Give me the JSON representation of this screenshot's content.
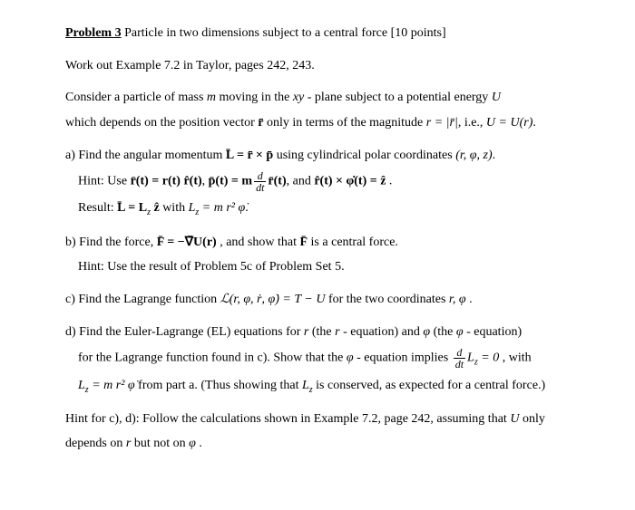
{
  "title": {
    "label": "Problem 3",
    "rest": "  Particle in two dimensions subject to a central force  [10 points]"
  },
  "intro1": "Work out Example 7.2 in Taylor, pages 242, 243.",
  "intro2a": "Consider a particle of mass ",
  "intro2b": " moving in the ",
  "intro2c": " - plane subject to a potential energy ",
  "intro3a": "which depends on the position vector ",
  "intro3b": " only in terms of the magnitude ",
  "intro3c": ", i.e., ",
  "intro3d": ".",
  "a": {
    "lead": "a) Find the angular momentum ",
    "mid": " using cylindrical polar coordinates ",
    "tail": ".",
    "hint_lead": "Hint: Use ",
    "hint_mid1": ", ",
    "hint_mid2": ", and ",
    "hint_tail": " .",
    "result_lead": "Result: ",
    "result_mid": " with ",
    "result_tail": "."
  },
  "b": {
    "lead": "b) Find the force, ",
    "mid": " , and show that ",
    "tail": " is a central force.",
    "hint": "Hint: Use the result of Problem 5c of Problem Set 5."
  },
  "c": {
    "lead": "c) Find the Lagrange function ",
    "tail": " for the two coordinates ",
    "end": " ."
  },
  "d": {
    "line1a": "d) Find the Euler-Lagrange (EL) equations for ",
    "line1b": " (the ",
    "line1c": " - equation) and ",
    "line1d": " (the ",
    "line1e": " - equation)",
    "line2a": "for the Lagrange function found in c). Show that the ",
    "line2b": " - equation implies ",
    "line2c": " , with",
    "line3a": " from part a. (Thus showing that ",
    "line3b": " is conserved, as expected for a central force.)"
  },
  "hint_cd1": "Hint for c), d): Follow the calculations shown in Example 7.2, page 242, assuming that ",
  "hint_cd2": " only",
  "hint_cd3": "depends on ",
  "hint_cd4": " but not on ",
  "hint_cd5": " .",
  "sym": {
    "m": "m",
    "xy": "xy",
    "U": "U",
    "rvec": "r̄",
    "r_eq": "r = |r̄|",
    "U_eq": "U = U(r)",
    "L_eq": "L̄ = r̄ × p̄",
    "coords": "(r, φ, z)",
    "rt": "r̄(t) = r(t) r̂(t)",
    "pt_a": "p̄(t) = m",
    "pt_b": "r̄(t)",
    "rhat_cross": "r̂(t) × φ̇(t) = ẑ",
    "L_res": "L̄ = L",
    "z_sub": "z",
    "zhat": " ẑ",
    "Lz_eq": "L",
    "Lz_rhs": " = m r² φ̇",
    "F_eq": "F̄ = −∇̄U(r)",
    "F": "F̄",
    "Lagr": "ℒ(r, φ, ṙ, φ̇) = T − U",
    "r": "r",
    "rphi": "r, φ",
    "phi": "φ",
    "dLz_a": "L",
    "dLz_b": " = 0",
    "Lz_def": "L",
    "Lz_def2": " = m r² φ̇",
    "Lz": "L",
    "d": "d",
    "dt": "dt"
  }
}
